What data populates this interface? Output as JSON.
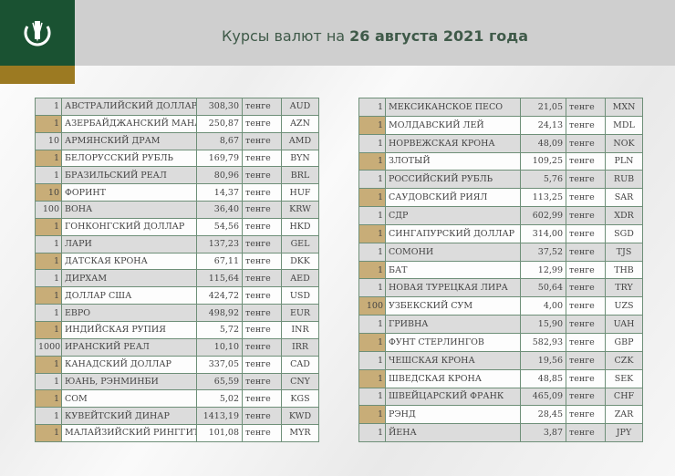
{
  "header": {
    "title_prefix": "Курсы валют на ",
    "title_date": "26 августа 2021 года",
    "logo": "national-bank-kazakhstan-emblem"
  },
  "colors": {
    "brand_green": "#1a5232",
    "gold": "#9c7a22",
    "tan": "#c8ad78"
  },
  "left_table": [
    [
      "1",
      "АВСТРАЛИЙСКИЙ ДОЛЛАР",
      "308,30",
      "тенге",
      "AUD"
    ],
    [
      "1",
      "АЗЕРБАЙДЖАНСКИЙ МАНАТ",
      "250,87",
      "тенге",
      "AZN"
    ],
    [
      "10",
      "АРМЯНСКИЙ  ДРАМ",
      "8,67",
      "тенге",
      "AMD"
    ],
    [
      "1",
      "БЕЛОРУССКИЙ РУБЛЬ",
      "169,79",
      "тенге",
      "BYN"
    ],
    [
      "1",
      "БРАЗИЛЬСКИЙ РЕАЛ",
      "80,96",
      "тенге",
      "BRL"
    ],
    [
      "10",
      "ФОРИНТ",
      "14,37",
      "тенге",
      "HUF"
    ],
    [
      "100",
      "ВОНА",
      "36,40",
      "тенге",
      "KRW"
    ],
    [
      "1",
      "ГОНКОНГСКИЙ ДОЛЛАР",
      "54,56",
      "тенге",
      "HKD"
    ],
    [
      "1",
      "ЛАРИ",
      "137,23",
      "тенге",
      "GEL"
    ],
    [
      "1",
      "ДАТСКАЯ КРОНА",
      "67,11",
      "тенге",
      "DKK"
    ],
    [
      "1",
      "ДИРХАМ",
      "115,64",
      "тенге",
      "AED"
    ],
    [
      "1",
      "ДОЛЛАР США",
      "424,72",
      "тенге",
      "USD"
    ],
    [
      "1",
      "ЕВРО",
      "498,92",
      "тенге",
      "EUR"
    ],
    [
      "1",
      "ИНДИЙСКАЯ РУПИЯ",
      "5,72",
      "тенге",
      "INR"
    ],
    [
      "1000",
      "ИРАНСКИЙ РЕАЛ",
      "10,10",
      "тенге",
      "IRR"
    ],
    [
      "1",
      "КАНАДСКИЙ ДОЛЛАР",
      "337,05",
      "тенге",
      "CAD"
    ],
    [
      "1",
      "ЮАНЬ, РЭНМИНБИ",
      "65,59",
      "тенге",
      "CNY"
    ],
    [
      "1",
      "СОМ",
      "5,02",
      "тенге",
      "KGS"
    ],
    [
      "1",
      "КУВЕЙТСКИЙ ДИНАР",
      "1413,19",
      "тенге",
      "KWD"
    ],
    [
      "1",
      "МАЛАЙЗИЙСКИЙ РИНГГИТ",
      "101,08",
      "тенге",
      "MYR"
    ]
  ],
  "right_table": [
    [
      "1",
      "МЕКСИКАНСКОЕ ПЕСО",
      "21,05",
      "тенге",
      "MXN"
    ],
    [
      "1",
      "МОЛДАВСКИЙ ЛЕЙ",
      "24,13",
      "тенге",
      "MDL"
    ],
    [
      "1",
      "НОРВЕЖСКАЯ КРОНА",
      "48,09",
      "тенге",
      "NOK"
    ],
    [
      "1",
      "ЗЛОТЫЙ",
      "109,25",
      "тенге",
      "PLN"
    ],
    [
      "1",
      "РОССИЙСКИЙ РУБЛЬ",
      "5,76",
      "тенге",
      "RUB"
    ],
    [
      "1",
      "САУДОВСКИЙ РИЯЛ",
      "113,25",
      "тенге",
      "SAR"
    ],
    [
      "1",
      "СДР",
      "602,99",
      "тенге",
      "XDR"
    ],
    [
      "1",
      "СИНГАПУРСКИЙ ДОЛЛАР",
      "314,00",
      "тенге",
      "SGD"
    ],
    [
      "1",
      "СОМОНИ",
      "37,52",
      "тенге",
      "TJS"
    ],
    [
      "1",
      "БАТ",
      "12,99",
      "тенге",
      "THB"
    ],
    [
      "1",
      "НОВАЯ ТУРЕЦКАЯ ЛИРА",
      "50,64",
      "тенге",
      "TRY"
    ],
    [
      "100",
      "УЗБЕКСКИЙ СУМ",
      "4,00",
      "тенге",
      "UZS"
    ],
    [
      "1",
      "ГРИВНА",
      "15,90",
      "тенге",
      "UAH"
    ],
    [
      "1",
      "ФУНТ СТЕРЛИНГОВ",
      "582,93",
      "тенге",
      "GBP"
    ],
    [
      "1",
      "ЧЕШСКАЯ КРОНА",
      "19,56",
      "тенге",
      "CZK"
    ],
    [
      "1",
      "ШВЕДСКАЯ КРОНА",
      "48,85",
      "тенге",
      "SEK"
    ],
    [
      "1",
      "ШВЕЙЦАРСКИЙ ФРАНК",
      "465,09",
      "тенге",
      "CHF"
    ],
    [
      "1",
      "РЭНД",
      "28,45",
      "тенге",
      "ZAR"
    ],
    [
      "1",
      "ЙЕНА",
      "3,87",
      "тенге",
      "JPY"
    ]
  ]
}
